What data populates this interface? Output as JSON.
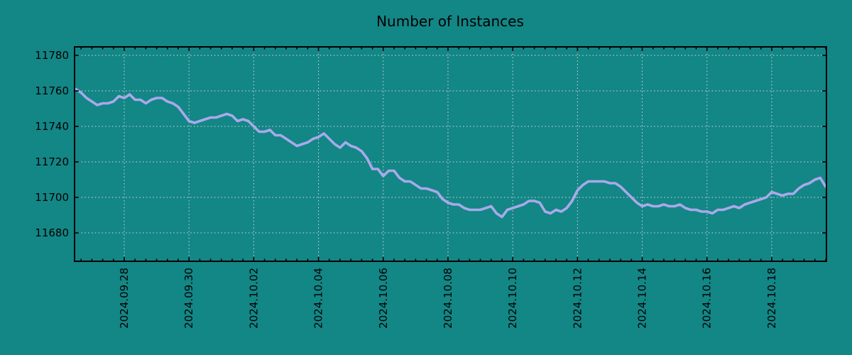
{
  "chart_data": {
    "type": "line",
    "title": "Number of Instances",
    "legend": "none",
    "grid": "dotted",
    "background_color": "#138686",
    "line_color": "#a9a9ea",
    "grid_color": "#d4d4d4",
    "axis_color": "#000000",
    "text_color": "#000000",
    "x_start": "2024-09-26 12:00",
    "x_interval_hours": 4,
    "x_tick_labels": [
      "2024.09.28",
      "2024.09.30",
      "2024.10.02",
      "2024.10.04",
      "2024.10.06",
      "2024.10.08",
      "2024.10.10",
      "2024.10.12",
      "2024.10.14",
      "2024.10.16",
      "2024.10.18"
    ],
    "x_tick_day_offsets": [
      0,
      2,
      4,
      6,
      8,
      10,
      12,
      14,
      16,
      18,
      20
    ],
    "x_minor_tick_hours": 8,
    "xlim_days": [
      -1.535,
      21.69
    ],
    "y_tick_labels": [
      "11680",
      "11700",
      "11720",
      "11740",
      "11760",
      "11780"
    ],
    "y_ticks": [
      11680,
      11700,
      11720,
      11740,
      11760,
      11780
    ],
    "ylim": [
      11664.0,
      11784.8
    ],
    "series": [
      {
        "name": "instances",
        "values": [
          11761,
          11759,
          11756,
          11754,
          11752,
          11753,
          11753,
          11754,
          11757,
          11756,
          11758,
          11755,
          11755,
          11753,
          11755,
          11756,
          11756,
          11754,
          11753,
          11751,
          11747,
          11743,
          11742,
          11743,
          11744,
          11745,
          11745,
          11746,
          11747,
          11746,
          11743,
          11744,
          11743,
          11740,
          11737,
          11737,
          11738,
          11735,
          11735,
          11733,
          11731,
          11729,
          11730,
          11731,
          11733,
          11734,
          11736,
          11733,
          11730,
          11728,
          11731,
          11729,
          11728,
          11726,
          11722,
          11716,
          11716,
          11712,
          11715,
          11715,
          11711,
          11709,
          11709,
          11707,
          11705,
          11705,
          11704,
          11703,
          11699,
          11697,
          11696,
          11696,
          11694,
          11693,
          11693,
          11693,
          11694,
          11695,
          11691,
          11689,
          11693,
          11694,
          11695,
          11696,
          11698,
          11698,
          11697,
          11692,
          11691,
          11693,
          11692,
          11694,
          11698,
          11704,
          11707,
          11709,
          11709,
          11709,
          11709,
          11708,
          11708,
          11706,
          11703,
          11700,
          11697,
          11695,
          11696,
          11695,
          11695,
          11696,
          11695,
          11695,
          11696,
          11694,
          11693,
          11693,
          11692,
          11692,
          11691,
          11693,
          11693,
          11694,
          11695,
          11694,
          11696,
          11697,
          11698,
          11699,
          11700,
          11703,
          11702,
          11701,
          11702,
          11702,
          11705,
          11707,
          11708,
          11710,
          11711,
          11706
        ]
      }
    ]
  }
}
